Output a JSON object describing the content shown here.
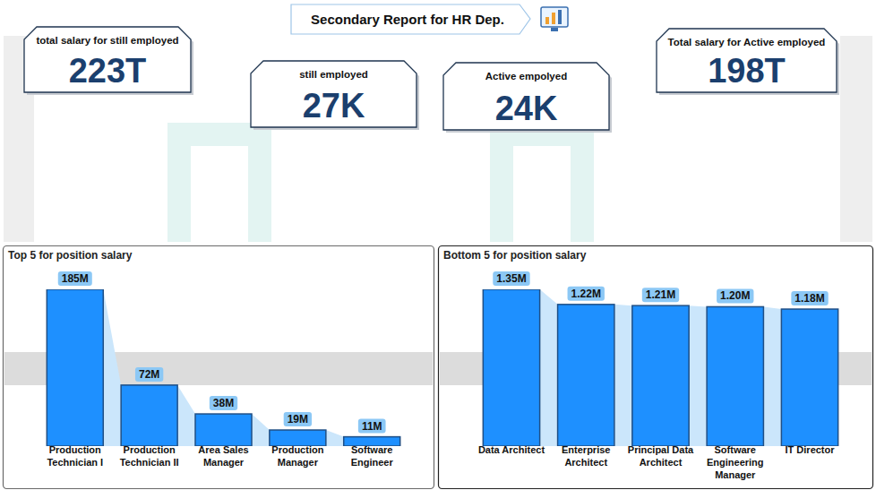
{
  "header": {
    "title": "Secondary Report for HR Dep."
  },
  "cards": [
    {
      "label": "total salary for still employed",
      "value": "223T"
    },
    {
      "label": "still employed",
      "value": "27K"
    },
    {
      "label": "Active empolyed",
      "value": "24K"
    },
    {
      "label": "Total salary for Active employed",
      "value": "198T"
    }
  ],
  "chart_data": [
    {
      "type": "bar",
      "title": "Top 5 for position salary",
      "categories": [
        "Production Technician I",
        "Production Technician II",
        "Area Sales Manager",
        "Production Manager",
        "Software Engineer"
      ],
      "values": [
        185,
        72,
        38,
        19,
        11
      ],
      "value_labels": [
        "185M",
        "72M",
        "38M",
        "19M",
        "11M"
      ],
      "color": "#1e90ff",
      "ylim": [
        0,
        185
      ],
      "data_labels": true,
      "tick_labels": "x"
    },
    {
      "type": "bar",
      "title": "Bottom 5 for position salary",
      "categories": [
        "Data Architect",
        "Enterprise Architect",
        "Principal Data Architect",
        "Software Engineering Manager",
        "IT Director"
      ],
      "values": [
        1.35,
        1.22,
        1.21,
        1.2,
        1.18
      ],
      "value_labels": [
        "1.35M",
        "1.22M",
        "1.21M",
        "1.20M",
        "1.18M"
      ],
      "color": "#1e90ff",
      "ylim": [
        0,
        1.35
      ],
      "data_labels": true,
      "tick_labels": "x"
    }
  ]
}
